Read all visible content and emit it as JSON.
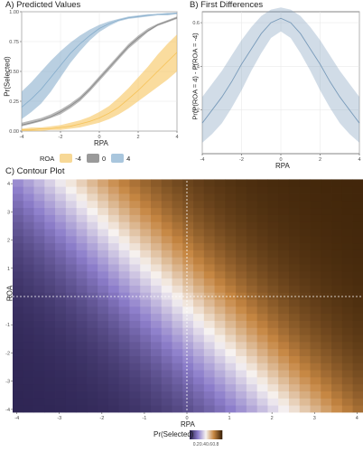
{
  "chart_data": [
    {
      "type": "line",
      "title": "A) Predicted Values",
      "xlabel": "RPA",
      "ylabel": "Pr(Selected)",
      "xlim": [
        -4,
        4
      ],
      "ylim": [
        0,
        1
      ],
      "xticks": [
        -4,
        -2,
        0,
        2,
        4
      ],
      "yticks": [
        0.0,
        0.25,
        0.5,
        0.75,
        1.0
      ],
      "ytick_labels": [
        "0.00",
        "0.25",
        "0.50",
        "0.75",
        "1.00"
      ],
      "grid": true,
      "legend_title": "ROA",
      "legend_position": "bottom",
      "x": [
        -4,
        -3.5,
        -3,
        -2.5,
        -2,
        -1.5,
        -1,
        -0.5,
        0,
        0.5,
        1,
        1.5,
        2,
        2.5,
        3,
        3.5,
        4
      ],
      "series": [
        {
          "name": "-4",
          "color": "#f5bf4f",
          "values": [
            0.01,
            0.01,
            0.02,
            0.02,
            0.03,
            0.04,
            0.06,
            0.08,
            0.11,
            0.15,
            0.2,
            0.27,
            0.34,
            0.42,
            0.5,
            0.58,
            0.66
          ],
          "lower": [
            0.0,
            0.0,
            0.0,
            0.01,
            0.01,
            0.02,
            0.03,
            0.05,
            0.07,
            0.1,
            0.14,
            0.19,
            0.25,
            0.31,
            0.37,
            0.43,
            0.5
          ],
          "upper": [
            0.02,
            0.03,
            0.03,
            0.04,
            0.05,
            0.07,
            0.09,
            0.12,
            0.16,
            0.21,
            0.28,
            0.36,
            0.45,
            0.54,
            0.64,
            0.73,
            0.81
          ]
        },
        {
          "name": "0",
          "color": "#7f7f7f",
          "values": [
            0.05,
            0.07,
            0.09,
            0.12,
            0.16,
            0.21,
            0.27,
            0.35,
            0.44,
            0.53,
            0.62,
            0.71,
            0.78,
            0.84,
            0.89,
            0.92,
            0.95
          ],
          "lower": [
            0.04,
            0.06,
            0.08,
            0.11,
            0.14,
            0.19,
            0.25,
            0.33,
            0.42,
            0.51,
            0.6,
            0.69,
            0.76,
            0.83,
            0.88,
            0.91,
            0.94
          ],
          "upper": [
            0.07,
            0.09,
            0.11,
            0.14,
            0.18,
            0.23,
            0.29,
            0.37,
            0.46,
            0.55,
            0.64,
            0.73,
            0.8,
            0.86,
            0.9,
            0.93,
            0.96
          ]
        },
        {
          "name": "4",
          "color": "#7fa8c9",
          "values": [
            0.2,
            0.27,
            0.35,
            0.45,
            0.55,
            0.65,
            0.73,
            0.8,
            0.86,
            0.9,
            0.93,
            0.95,
            0.96,
            0.97,
            0.98,
            0.98,
            0.99
          ],
          "lower": [
            0.1,
            0.16,
            0.23,
            0.33,
            0.45,
            0.57,
            0.67,
            0.76,
            0.83,
            0.88,
            0.92,
            0.94,
            0.95,
            0.96,
            0.97,
            0.97,
            0.98
          ],
          "upper": [
            0.33,
            0.41,
            0.5,
            0.59,
            0.67,
            0.74,
            0.8,
            0.85,
            0.89,
            0.92,
            0.94,
            0.96,
            0.97,
            0.98,
            0.98,
            0.99,
            0.99
          ]
        }
      ]
    },
    {
      "type": "line",
      "title": "B) First Differences",
      "xlabel": "RPA",
      "ylabel": "Pr(P(ROA = 4) - P(ROA = -4)",
      "xlim": [
        -4,
        4
      ],
      "ylim": [
        0.0,
        0.65
      ],
      "xticks": [
        -4,
        -2,
        0,
        2,
        4
      ],
      "yticks": [
        0.2,
        0.4,
        0.6
      ],
      "grid": true,
      "x": [
        -4,
        -3.5,
        -3,
        -2.5,
        -2,
        -1.5,
        -1,
        -0.5,
        0,
        0.5,
        1,
        1.5,
        2,
        2.5,
        3,
        3.5,
        4
      ],
      "series": [
        {
          "name": "",
          "color": "#6f93b5",
          "values": [
            0.14,
            0.2,
            0.26,
            0.33,
            0.41,
            0.48,
            0.55,
            0.6,
            0.62,
            0.6,
            0.55,
            0.48,
            0.41,
            0.33,
            0.26,
            0.2,
            0.14
          ],
          "lower": [
            0.05,
            0.09,
            0.14,
            0.21,
            0.29,
            0.38,
            0.46,
            0.53,
            0.56,
            0.53,
            0.46,
            0.38,
            0.29,
            0.21,
            0.14,
            0.09,
            0.05
          ],
          "upper": [
            0.26,
            0.32,
            0.38,
            0.45,
            0.52,
            0.58,
            0.63,
            0.66,
            0.67,
            0.66,
            0.63,
            0.58,
            0.52,
            0.45,
            0.38,
            0.32,
            0.26
          ]
        }
      ]
    },
    {
      "type": "heatmap",
      "title": "C) Contour Plot",
      "xlabel": "RPA",
      "ylabel": "ROA",
      "xlim": [
        -4.1,
        4.1
      ],
      "ylim": [
        -4.1,
        4.1
      ],
      "xticks": [
        -4,
        -3,
        -2,
        -1,
        0,
        1,
        2,
        3,
        4
      ],
      "yticks": [
        -4,
        -3,
        -2,
        -1,
        0,
        1,
        2,
        3,
        4
      ],
      "grid_step": 0.25,
      "value": "Pr(Selected) = logistic(0.22 + 0.85*RPA + 0.55*ROA)",
      "reference_lines": {
        "x": 0,
        "y": 0
      },
      "legend_title": "Pr(Selected)",
      "legend_position": "bottom",
      "colorbar_ticks": [
        "0.2",
        "0.4",
        "0.6",
        "0.8"
      ],
      "colors": {
        "low": "#2d2452",
        "mid_low": "#8d7ecb",
        "mid": "#f7f3f1",
        "mid_high": "#c68642",
        "high": "#40250a"
      }
    }
  ]
}
